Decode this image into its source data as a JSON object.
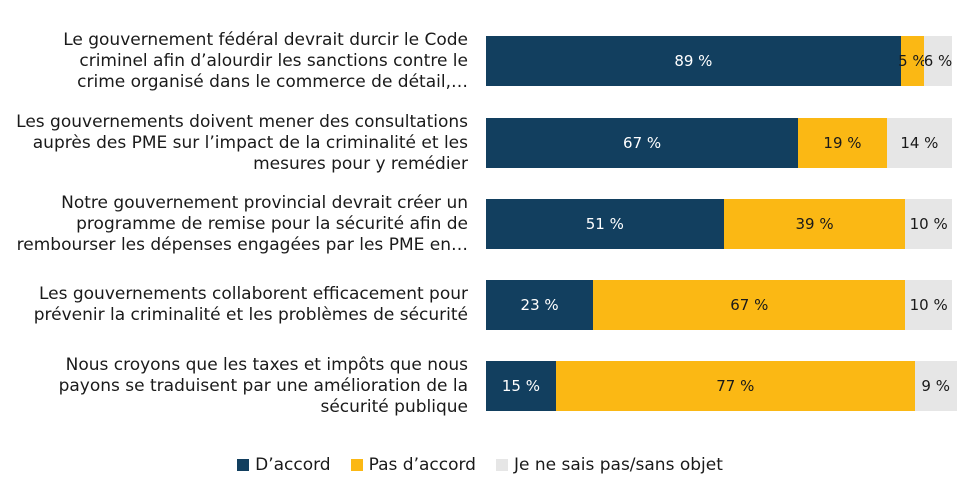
{
  "chart_data": {
    "type": "bar",
    "orientation": "horizontal",
    "stacked": true,
    "categories": [
      "Le gouvernement fédéral devrait durcir le Code criminel afin d’alourdir les sanctions contre le crime organisé dans le commerce de détail,…",
      "Les gouvernements doivent mener des consultations auprès des PME sur l’impact de la criminalité et les mesures pour y remédier",
      "Notre gouvernement provincial devrait créer un programme de remise pour la sécurité afin de rembourser les dépenses engagées par les PME en…",
      "Les gouvernements collaborent efficacement pour prévenir la criminalité et les problèmes de sécurité",
      "Nous croyons que les taxes et impôts que nous payons se traduisent par une amélioration de la sécurité publique"
    ],
    "category_lines": [
      [
        "Le gouvernement fédéral devrait durcir le Code",
        "criminel afin d’alourdir les sanctions contre le",
        "crime organisé dans le commerce de détail,…"
      ],
      [
        "Les gouvernements doivent mener des consultations",
        "auprès des PME sur l’impact de la criminalité et les",
        "mesures pour y remédier"
      ],
      [
        "Notre gouvernement provincial devrait créer un",
        "programme de remise pour la sécurité afin de",
        "rembourser les dépenses engagées par les PME en…"
      ],
      [
        "Les gouvernements collaborent efficacement pour",
        "prévenir la criminalité et les problèmes de sécurité"
      ],
      [
        "Nous croyons que les taxes et impôts que nous",
        "payons se traduisent par une amélioration de la",
        "sécurité publique"
      ]
    ],
    "series": [
      {
        "name": "D’accord",
        "color": "#123f5f",
        "label_color": "#ffffff",
        "values": [
          89,
          67,
          51,
          23,
          15
        ],
        "labels": [
          "89 %",
          "67 %",
          "51 %",
          "23 %",
          "15 %"
        ]
      },
      {
        "name": "Pas d’accord",
        "color": "#fbb814",
        "label_color": "#1a1a1a",
        "values": [
          5,
          19,
          39,
          67,
          77
        ],
        "labels": [
          "5 %",
          "19 %",
          "39 %",
          "67 %",
          "77 %"
        ]
      },
      {
        "name": "Je ne sais pas/sans objet",
        "color": "#e6e6e6",
        "label_color": "#1a1a1a",
        "values": [
          6,
          14,
          10,
          10,
          9
        ],
        "labels": [
          "6 %",
          "14 %",
          "10 %",
          "10 %",
          "9 %"
        ]
      }
    ],
    "xlim": [
      0,
      100
    ],
    "legend_position": "bottom",
    "title": "",
    "xlabel": "",
    "ylabel": ""
  }
}
